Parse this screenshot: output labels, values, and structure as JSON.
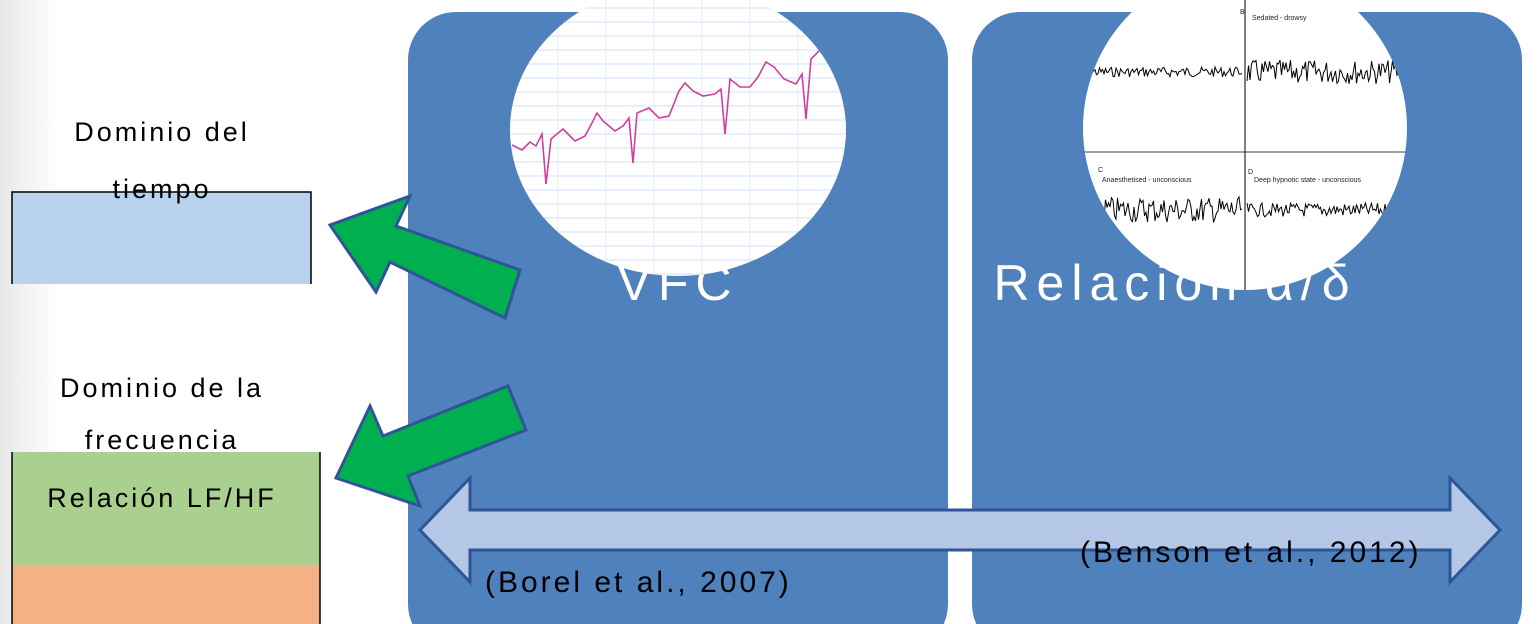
{
  "left": {
    "time_label": "Dominio del tiempo",
    "freq_label": "Dominio de la frecuencia",
    "ratio_label": "Relación LF/HF"
  },
  "panels": [
    {
      "label": "VFC",
      "citation": "(Borel et al., 2007)"
    },
    {
      "label": "Relación α/δ",
      "citation": "(Benson et al., 2012)",
      "image_labels": [
        "B",
        "Sedated - drowsy",
        "C",
        "Anaesthetised - unconscious",
        "D",
        "Deep hypnotic state - unconscious"
      ]
    }
  ]
}
